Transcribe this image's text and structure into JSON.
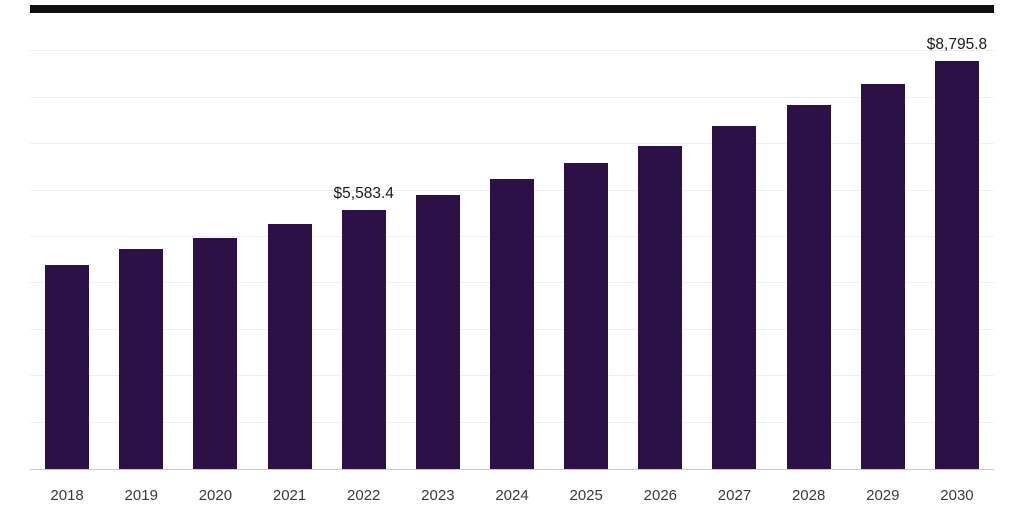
{
  "chart_data": {
    "type": "bar",
    "title": "",
    "xlabel": "",
    "ylabel": "",
    "categories": [
      "2018",
      "2019",
      "2020",
      "2021",
      "2022",
      "2023",
      "2024",
      "2025",
      "2026",
      "2027",
      "2028",
      "2029",
      "2030"
    ],
    "values": [
      4390,
      4740,
      4980,
      5280,
      5583.4,
      5900,
      6240,
      6600,
      6960,
      7390,
      7850,
      8300,
      8795.8
    ],
    "data_labels": [
      null,
      null,
      null,
      null,
      "$5,583.4",
      null,
      null,
      null,
      null,
      null,
      null,
      null,
      "$8,795.8"
    ],
    "ylim": [
      0,
      10000
    ],
    "grid_step": 1000,
    "grid": true,
    "legend": false,
    "colors": {
      "bar": "#2c1147",
      "gridline": "#efefef",
      "axis_line": "#c9c9c9",
      "top_border": "#101010",
      "value_label_text": "#1a1a1a",
      "tick_label_text": "#3a3a3a",
      "background": "#ffffff"
    }
  }
}
